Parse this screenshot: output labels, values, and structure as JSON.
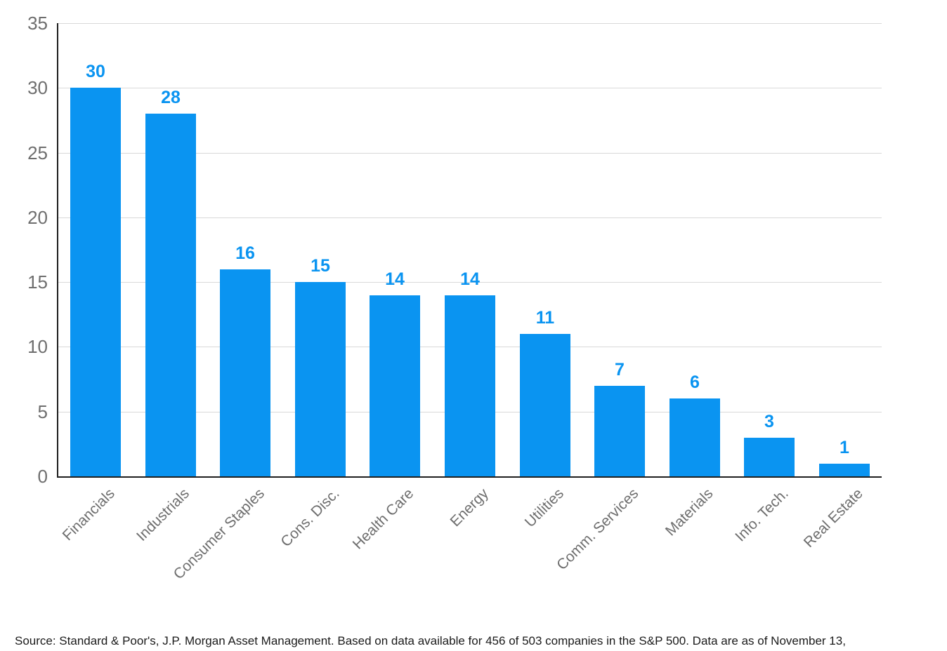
{
  "chart_data": {
    "type": "bar",
    "categories": [
      "Financials",
      "Industrials",
      "Consumer Staples",
      "Cons. Disc.",
      "Health Care",
      "Energy",
      "Utilities",
      "Comm. Services",
      "Materials",
      "Info. Tech.",
      "Real Estate"
    ],
    "values": [
      30,
      28,
      16,
      15,
      14,
      14,
      11,
      7,
      6,
      3,
      1
    ],
    "title": "",
    "xlabel": "",
    "ylabel": "",
    "ylim": [
      0,
      35
    ],
    "yticks": [
      0,
      5,
      10,
      15,
      20,
      25,
      30,
      35
    ],
    "grid": "horizontal",
    "legend": "none",
    "value_labels_shown": true,
    "colors": {
      "bar": "#0A94F1",
      "value_label": "#0A94F1",
      "gridline": "#d9d9d9",
      "axis_line": "#1f1f1f",
      "tick_label": "#6e6e6e",
      "category_label": "#6e6e6e"
    }
  },
  "footer": {
    "source_text": "Source: Standard & Poor's, J.P. Morgan Asset Management. Based on data available for 456 of 503 companies in the S&P 500. Data are as of November 13,"
  }
}
